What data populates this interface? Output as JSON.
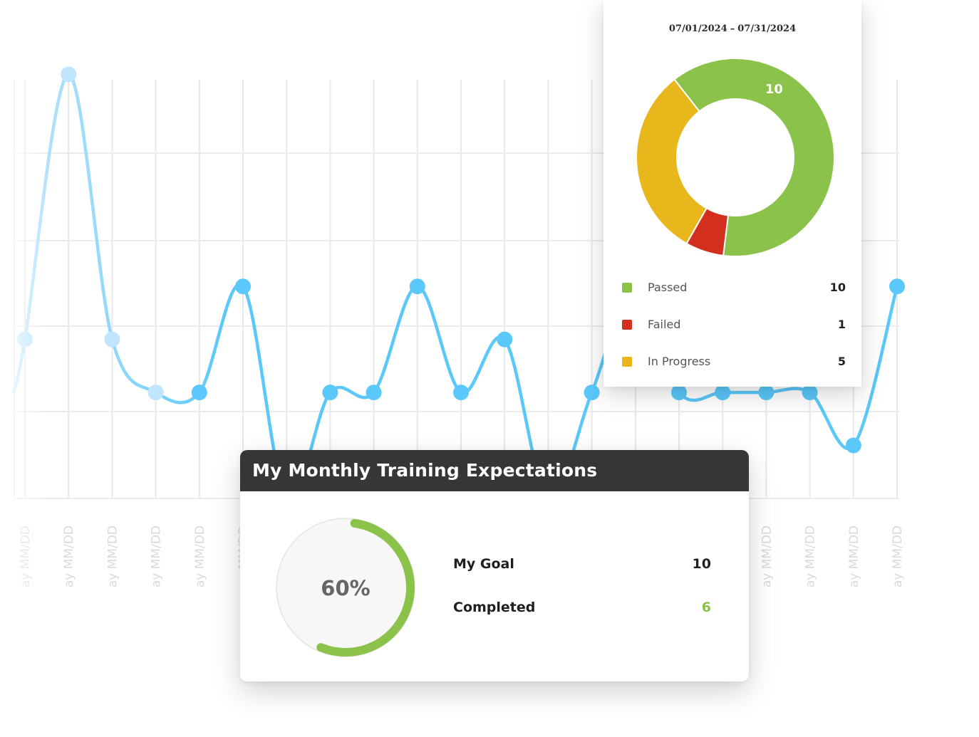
{
  "chart_data": [
    {
      "type": "line",
      "x": [
        "ay MM/DD",
        "ay MM/DD",
        "ay MM/DD",
        "ay MM/DD",
        "ay MM/DD",
        "ay MM/DD",
        "ay MM/DD",
        "ay MM/DD",
        "ay MM/DD",
        "ay MM/DD",
        "ay MM/DD",
        "ay MM/DD",
        "ay MM/DD",
        "ay MM/DD",
        "ay MM/DD",
        "ay MM/DD",
        "ay MM/DD",
        "ay MM/DD",
        "ay MM/DD",
        "ay MM/DD",
        "ay MM/DD"
      ],
      "series": [
        {
          "values": [
            3,
            8,
            3,
            2,
            2,
            4,
            0,
            2,
            2,
            4,
            2,
            3,
            0,
            2,
            4,
            2,
            2,
            2,
            2,
            1,
            4
          ]
        }
      ],
      "ylim": [
        0,
        9
      ],
      "grid": true,
      "color": "#5ac8fa"
    },
    {
      "type": "pie",
      "title": "07/01/2024 – 07/31/2024",
      "title_start": "07/01/2024",
      "title_sep": "–",
      "title_end": "07/31/2024",
      "slices": [
        {
          "label": "Passed",
          "value": 10,
          "color": "#8bc34a"
        },
        {
          "label": "Failed",
          "value": 1,
          "color": "#d32f1e"
        },
        {
          "label": "In Progress",
          "value": 5,
          "color": "#e8b71c"
        }
      ],
      "donut": true,
      "shown_label": "10"
    }
  ],
  "training": {
    "title": "My Monthly Training Expectations",
    "percent_label": "60%",
    "progress_fraction": 0.6,
    "goal_label": "My Goal",
    "goal_value": "10",
    "completed_label": "Completed",
    "completed_value": "6",
    "progress_color": "#8bc34a"
  }
}
